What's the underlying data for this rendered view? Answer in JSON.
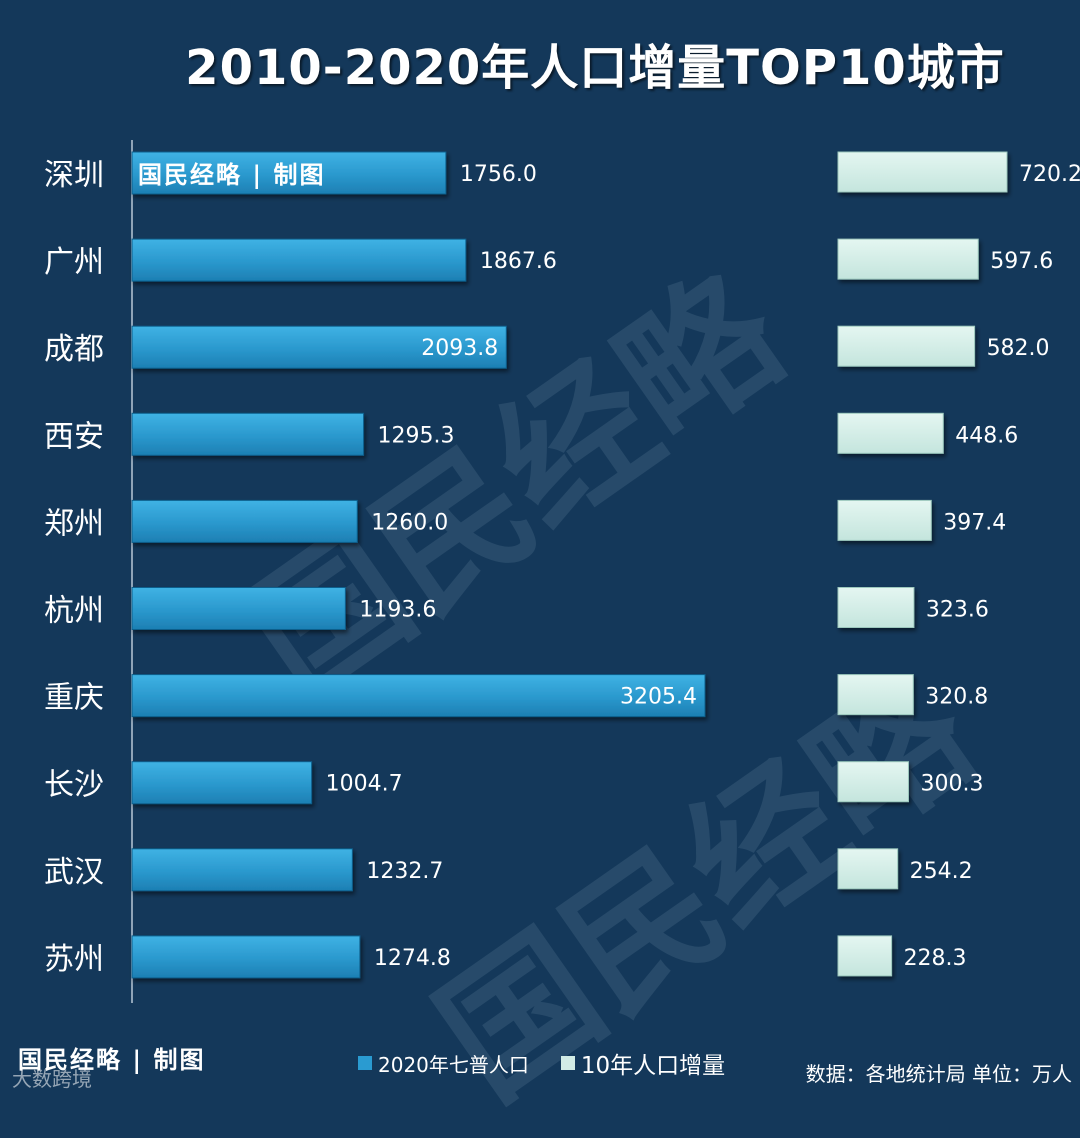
{
  "chart_data": {
    "type": "bar",
    "title": "2010-2020年人口增量TOP10城市",
    "categories": [
      "深圳",
      "广州",
      "成都",
      "西安",
      "郑州",
      "杭州",
      "重庆",
      "长沙",
      "武汉",
      "苏州"
    ],
    "series": [
      {
        "name": "2020年七普人口",
        "color": "#2a9bd1",
        "values": [
          1756.0,
          1867.6,
          2093.8,
          1295.3,
          1260.0,
          1193.6,
          3205.4,
          1004.7,
          1232.7,
          1274.8
        ],
        "labels": [
          "1756.0",
          "1867.6",
          "2093.8",
          "1295.3",
          "1260.0",
          "1193.6",
          "3205.4",
          "1004.7",
          "1232.7",
          "1274.8"
        ]
      },
      {
        "name": "10年人口增量",
        "color": "#d2ece6",
        "values": [
          720.2,
          597.6,
          582.0,
          448.6,
          397.4,
          323.6,
          320.8,
          300.3,
          254.2,
          228.3
        ],
        "labels": [
          "720.2",
          "597.6",
          "582.0",
          "448.6",
          "397.4",
          "323.6",
          "320.8",
          "300.3",
          "254.2",
          "228.3"
        ]
      }
    ],
    "xlim_left": [
      0,
      3900
    ],
    "xlim_right": [
      0,
      1000
    ],
    "legend": "bottom-center"
  },
  "branding": {
    "top": "国民经略 | 制图",
    "bottom": "国民经略 | 制图",
    "watermark_text": "国民经略",
    "small_watermark": "大数跨境"
  },
  "source_note": "数据：各地统计局 单位：万人"
}
